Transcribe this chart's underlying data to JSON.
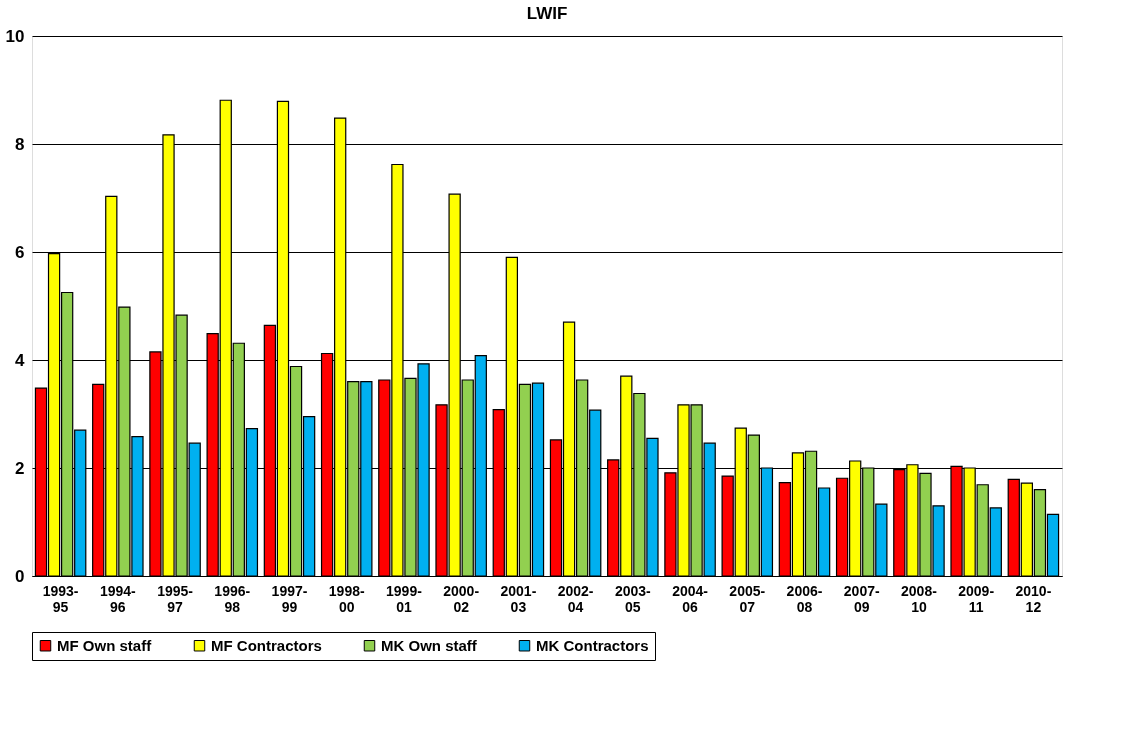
{
  "chart_data": {
    "type": "bar",
    "title": "LWIF",
    "categories": [
      "1993-95",
      "1994-96",
      "1995-97",
      "1996-98",
      "1997-99",
      "1998-00",
      "1999-01",
      "2000-02",
      "2001-03",
      "2002-04",
      "2003-05",
      "2004-06",
      "2005-07",
      "2006-08",
      "2007-09",
      "2008-10",
      "2009-11",
      "2010-12"
    ],
    "series": [
      {
        "name": "MF Own staff",
        "color": "#ff0000",
        "values": [
          3.48,
          3.55,
          4.15,
          4.49,
          4.64,
          4.12,
          3.63,
          3.17,
          3.08,
          2.52,
          2.15,
          1.91,
          1.85,
          1.73,
          1.81,
          1.97,
          2.03,
          1.79
        ]
      },
      {
        "name": "MF Contractors",
        "color": "#ffff00",
        "values": [
          5.97,
          7.03,
          8.17,
          8.81,
          8.79,
          8.48,
          7.62,
          7.07,
          5.9,
          4.7,
          3.7,
          3.17,
          2.74,
          2.28,
          2.13,
          2.06,
          2.0,
          1.72
        ]
      },
      {
        "name": "MK Own staff",
        "color": "#92d050",
        "values": [
          5.25,
          4.98,
          4.83,
          4.31,
          3.88,
          3.6,
          3.66,
          3.63,
          3.55,
          3.63,
          3.38,
          3.17,
          2.61,
          2.31,
          2.0,
          1.9,
          1.69,
          1.6
        ]
      },
      {
        "name": "MK Contractors",
        "color": "#00b0f0",
        "values": [
          2.7,
          2.58,
          2.46,
          2.73,
          2.95,
          3.6,
          3.93,
          4.08,
          3.57,
          3.07,
          2.55,
          2.46,
          2.0,
          1.63,
          1.33,
          1.3,
          1.26,
          1.14
        ]
      }
    ],
    "ylim": [
      0,
      10
    ],
    "yticks": [
      0,
      2,
      4,
      6,
      8,
      10
    ],
    "grid": "y",
    "legend": "bottom"
  }
}
